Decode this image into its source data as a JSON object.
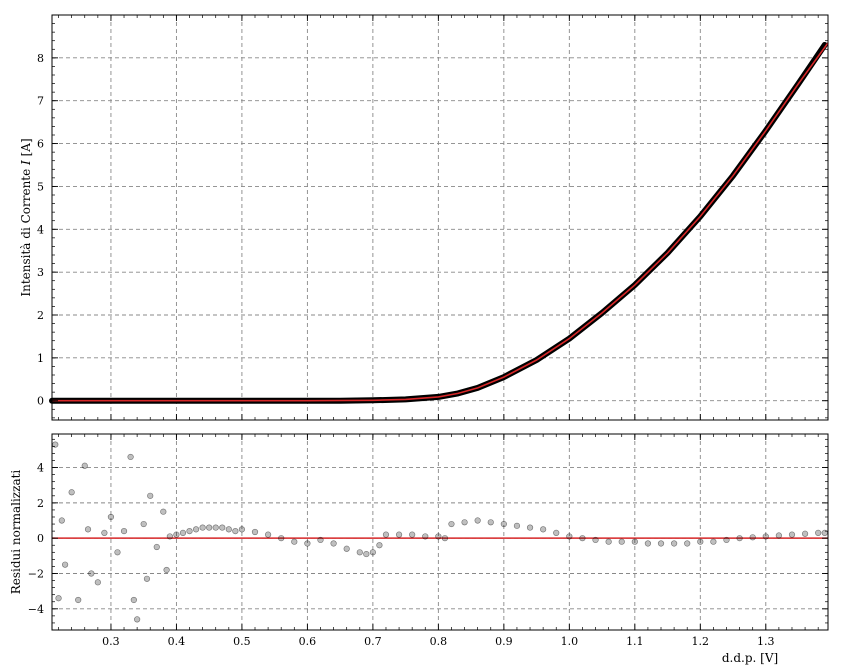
{
  "chart_data": [
    {
      "type": "scatter",
      "panel": "top",
      "title": "",
      "xlabel": "",
      "ylabel": "Intensità di Corrente I [A]",
      "ylabel_parts": [
        "Intensità di Corrente ",
        "I",
        " [A]"
      ],
      "xlim": [
        0.21,
        1.395
      ],
      "ylim": [
        -0.45,
        9.0
      ],
      "grid": true,
      "xticks": [
        0.3,
        0.4,
        0.5,
        0.6,
        0.7,
        0.8,
        0.9,
        1.0,
        1.1,
        1.2,
        1.3
      ],
      "yticks": [
        0,
        1,
        2,
        3,
        4,
        5,
        6,
        7,
        8
      ],
      "series": [
        {
          "kind": "points",
          "color": "#000000",
          "x": [
            0.21,
            0.25,
            0.3,
            0.35,
            0.4,
            0.45,
            0.5,
            0.55,
            0.6,
            0.65,
            0.7,
            0.75,
            0.8,
            0.83,
            0.86,
            0.9,
            0.95,
            1.0,
            1.05,
            1.1,
            1.15,
            1.2,
            1.25,
            1.3,
            1.35,
            1.39
          ],
          "y": [
            0.0,
            0.0,
            0.0,
            0.0,
            0.0,
            0.0,
            0.0,
            0.0,
            0.0,
            0.0,
            0.01,
            0.03,
            0.09,
            0.17,
            0.3,
            0.55,
            0.95,
            1.45,
            2.05,
            2.7,
            3.45,
            4.3,
            5.25,
            6.3,
            7.4,
            8.3
          ]
        },
        {
          "kind": "fit-line",
          "color": "#d62728",
          "x": [
            0.21,
            0.3,
            0.4,
            0.5,
            0.6,
            0.7,
            0.75,
            0.8,
            0.83,
            0.86,
            0.9,
            0.95,
            1.0,
            1.05,
            1.1,
            1.15,
            1.2,
            1.25,
            1.3,
            1.35,
            1.395
          ],
          "y": [
            0.0,
            0.0,
            0.0,
            0.0,
            0.0,
            0.01,
            0.03,
            0.09,
            0.17,
            0.3,
            0.55,
            0.95,
            1.45,
            2.05,
            2.7,
            3.45,
            4.3,
            5.25,
            6.3,
            7.4,
            8.35
          ]
        }
      ]
    },
    {
      "type": "scatter",
      "panel": "bottom",
      "title": "",
      "xlabel": "d.d.p. [V]",
      "ylabel": "Residui normalizzati",
      "xlim": [
        0.21,
        1.395
      ],
      "ylim": [
        -5.2,
        5.9
      ],
      "grid": true,
      "xticks": [
        0.3,
        0.4,
        0.5,
        0.6,
        0.7,
        0.8,
        0.9,
        1.0,
        1.1,
        1.2,
        1.3
      ],
      "yticks": [
        -4,
        -2,
        0,
        2,
        4
      ],
      "zero_line_color": "#d62728",
      "points_color": "#000000",
      "points_alpha": 0.25,
      "x": [
        0.215,
        0.22,
        0.225,
        0.23,
        0.24,
        0.25,
        0.26,
        0.265,
        0.27,
        0.28,
        0.29,
        0.3,
        0.31,
        0.32,
        0.33,
        0.335,
        0.34,
        0.35,
        0.355,
        0.36,
        0.37,
        0.38,
        0.385,
        0.39,
        0.4,
        0.41,
        0.42,
        0.43,
        0.44,
        0.45,
        0.46,
        0.47,
        0.48,
        0.49,
        0.5,
        0.52,
        0.54,
        0.56,
        0.58,
        0.6,
        0.62,
        0.64,
        0.66,
        0.68,
        0.69,
        0.7,
        0.71,
        0.72,
        0.74,
        0.76,
        0.78,
        0.8,
        0.81,
        0.82,
        0.84,
        0.86,
        0.88,
        0.9,
        0.92,
        0.94,
        0.96,
        0.98,
        1.0,
        1.02,
        1.04,
        1.06,
        1.08,
        1.1,
        1.12,
        1.14,
        1.16,
        1.18,
        1.2,
        1.22,
        1.24,
        1.26,
        1.28,
        1.3,
        1.32,
        1.34,
        1.36,
        1.38,
        1.39
      ],
      "y": [
        5.3,
        -3.4,
        1.0,
        -1.5,
        2.6,
        -3.5,
        4.1,
        0.5,
        -2.0,
        -2.5,
        0.3,
        1.2,
        -0.8,
        0.4,
        4.6,
        -3.5,
        -4.6,
        0.8,
        -2.3,
        2.4,
        -0.5,
        1.5,
        -1.8,
        0.1,
        0.2,
        0.3,
        0.4,
        0.5,
        0.6,
        0.6,
        0.6,
        0.6,
        0.5,
        0.4,
        0.5,
        0.35,
        0.2,
        0.0,
        -0.2,
        -0.3,
        -0.1,
        -0.3,
        -0.6,
        -0.8,
        -0.9,
        -0.8,
        -0.4,
        0.2,
        0.2,
        0.2,
        0.1,
        0.1,
        0.0,
        0.8,
        0.9,
        1.0,
        0.9,
        0.8,
        0.7,
        0.6,
        0.5,
        0.3,
        0.1,
        0.0,
        -0.1,
        -0.2,
        -0.2,
        -0.2,
        -0.3,
        -0.3,
        -0.3,
        -0.3,
        -0.2,
        -0.2,
        -0.1,
        0.0,
        0.05,
        0.1,
        0.15,
        0.2,
        0.25,
        0.3,
        0.3
      ]
    }
  ]
}
